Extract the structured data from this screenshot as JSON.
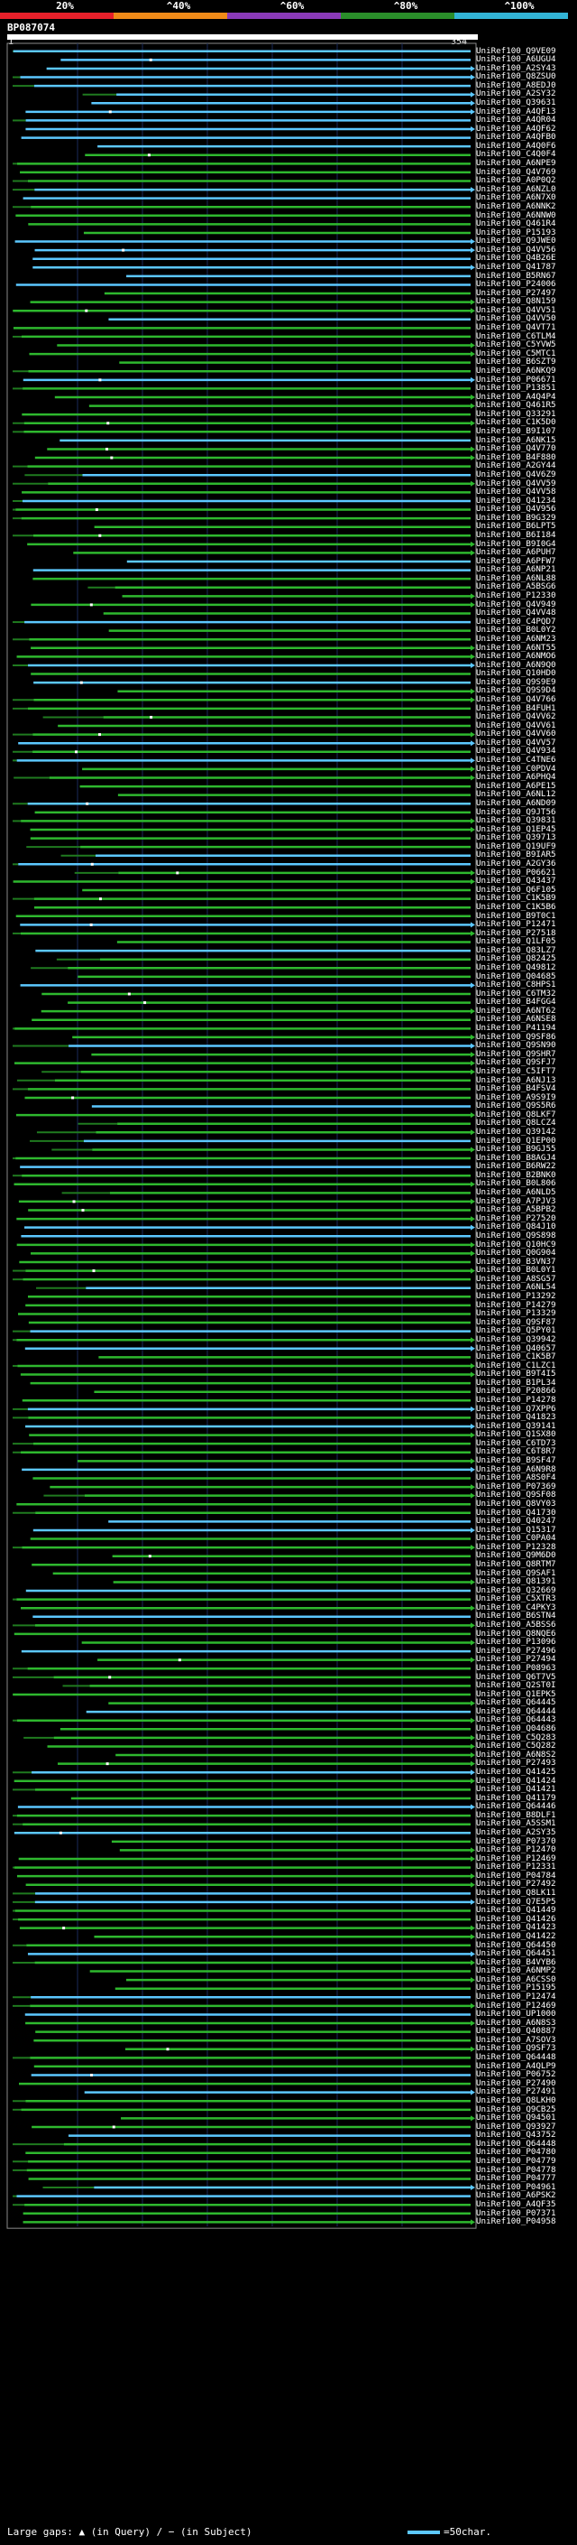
{
  "scale": {
    "labels": [
      "20%",
      "^40%",
      "^60%",
      "^80%",
      "^100%"
    ],
    "colors": [
      "#e8202a",
      "#f08a18",
      "#8a3ab8",
      "#2a8e2a",
      "#32b4d6"
    ]
  },
  "query": {
    "id": "BP087074",
    "start": "1",
    "end": "354"
  },
  "colors": {
    "high": "#5cc8ff",
    "mid": "#2eb82e",
    "low": "#1f7a1f",
    "frame": "#8a8a8a",
    "grid": "#1a2a5a"
  },
  "hits": [
    "Q9VE09",
    "A6UGU4",
    "A2SY43",
    "Q8ZSU0",
    "A8EDJ0",
    "A2SY32",
    "Q39631",
    "A4QF13",
    "A4QR04",
    "A4QF62",
    "A4QFB0",
    "A4Q0F6",
    "C4Q0F4",
    "A6NPE9",
    "Q4V769",
    "A0P0Q2",
    "A6NZL0",
    "A6N7X0",
    "A6NNK2",
    "A6NNW0",
    "Q461R4",
    "P15193",
    "Q9JWE0",
    "Q4VV56",
    "Q4B26E",
    "Q41787",
    "B5RN67",
    "P24006",
    "P27497",
    "Q8N159",
    "Q4VV51",
    "Q4VV50",
    "Q4VT71",
    "C6TLM4",
    "C5YVW5",
    "C5MTC1",
    "B6SZT9",
    "A6NKQ9",
    "P06671",
    "P13851",
    "A4Q4P4",
    "Q461R5",
    "Q33291",
    "C1K5D0",
    "B9I107",
    "A6NK15",
    "Q4V770",
    "B4F880",
    "A2GY44",
    "Q4V6Z9",
    "Q4VV59",
    "Q4VV58",
    "Q41234",
    "Q4V956",
    "B9G329",
    "B6LPT5",
    "B6I184",
    "B9I0G4",
    "A6PUH7",
    "A6PFW7",
    "A6NP21",
    "A6NL88",
    "A5BSG6",
    "P12330",
    "Q4V949",
    "Q4VV48",
    "C4PQD7",
    "B0L0Y2",
    "A6NM23",
    "A6NT55",
    "A6NMO6",
    "A6N9Q0",
    "Q10HD0",
    "Q9S9E9",
    "Q9S9D4",
    "Q4V766",
    "B4FUH1",
    "Q4VV62",
    "Q4VV61",
    "Q4VV60",
    "Q4VV57",
    "Q4V934",
    "C4TNE6",
    "C0PDV4",
    "A6PHQ4",
    "A6PE15",
    "A6NL12",
    "A6ND09",
    "Q9JT56",
    "Q39831",
    "Q1EP45",
    "Q39713",
    "Q19UF9",
    "B9IAR5",
    "A2GY36",
    "P06621",
    "Q43437",
    "Q6F105",
    "C1K5B9",
    "C1K5B6",
    "B9T0C1",
    "P12471",
    "P27518",
    "Q1LF05",
    "Q83LZ7",
    "Q82425",
    "Q49812",
    "Q04685",
    "C8HPS1",
    "C6TM32",
    "B4FGG4",
    "A6NT62",
    "A6NSE8",
    "P41194",
    "Q9SF86",
    "Q9SN90",
    "Q9SHR7",
    "Q9SFJ7",
    "C5IFT7",
    "A6NJ13",
    "B4FSV4",
    "A9S9I9",
    "Q9S5R6",
    "Q8LKF7",
    "Q8LCZ4",
    "Q39142",
    "Q1EP00",
    "B9GJ55",
    "B8AGJ4",
    "B6RW22",
    "B2BNK0",
    "B0L806",
    "A6NLD5",
    "A7PJV3",
    "A5BPB2",
    "P27520",
    "Q84J10",
    "Q9S898",
    "Q10HC9",
    "Q0G904",
    "B3VN37",
    "B0L0Y1",
    "A8SG57",
    "A6NL54",
    "P13292",
    "P14279",
    "P13329",
    "Q9SF87",
    "Q5PY01",
    "Q39942",
    "Q40657",
    "C1K5B7",
    "C1LZC1",
    "B9T4I5",
    "B1PL34",
    "P20866",
    "P14278",
    "Q7XPP6",
    "Q41823",
    "Q39141",
    "Q1SX80",
    "C6TD73",
    "C6T8R7",
    "B9SF47",
    "A6N9R8",
    "A8S0F4",
    "P07369",
    "Q9SF08",
    "Q8VY03",
    "Q41730",
    "Q40247",
    "Q15317",
    "C0PA04",
    "P12328",
    "Q9M6D0",
    "Q8RTM7",
    "Q9SAF1",
    "Q81391",
    "Q32669",
    "C5XTR3",
    "C4PKY3",
    "B6STN4",
    "A5BSS6",
    "Q8NQE6",
    "P13096",
    "P27496",
    "P27494",
    "P08963",
    "Q6T7V5",
    "Q2ST0I",
    "Q1EPK5",
    "Q64445",
    "Q64444",
    "Q64443",
    "Q04686",
    "C5Q283",
    "C5Q282",
    "A6N8S2",
    "P27493",
    "Q41425",
    "Q41424",
    "Q41421",
    "Q41179",
    "Q64446",
    "B8DLF1",
    "A5SSM1",
    "A2SY35",
    "P07370",
    "P12470",
    "P12469",
    "P12331",
    "P04784",
    "P27492",
    "Q8LK11",
    "Q7E5P5",
    "Q41449",
    "Q41426",
    "Q41423",
    "Q41422",
    "Q64450",
    "Q64451",
    "B4VYB6",
    "A6NMP2",
    "A6CSS0",
    "P15195",
    "P12474",
    "P12469",
    "UP1000",
    "A6N8S3",
    "Q40887",
    "A7SOV3",
    "Q9SF73",
    "Q64448",
    "A4QLP9",
    "P06752",
    "P27490",
    "P27491",
    "Q8LKH0",
    "Q9CB25",
    "Q94501",
    "Q93927",
    "Q43752",
    "Q64448",
    "P04780",
    "P04779",
    "P04778",
    "P04777",
    "P04961",
    "A6PSK2",
    "A4QF35",
    "P07371",
    "P04958"
  ],
  "legend": {
    "gaps": "Large gaps: ▲ (in Query) / − (in Subject)",
    "key": "=50char."
  }
}
